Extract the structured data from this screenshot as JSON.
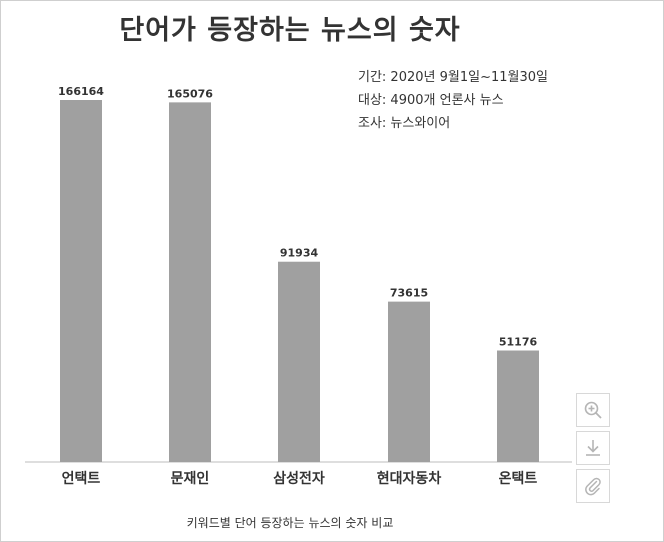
{
  "page": {
    "caption": "키워드별 단어 등장하는 뉴스의 숫자 비교"
  },
  "toolbar": {
    "zoom_icon": "zoom-in-icon",
    "download_icon": "download-icon",
    "attach_icon": "paperclip-icon"
  },
  "chart_data": {
    "type": "bar",
    "title": "단어가 등장하는 뉴스의 숫자",
    "notes": [
      "기간: 2020년 9월1일~11월30일",
      "대상: 4900개 언론사 뉴스",
      "조사: 뉴스와이어"
    ],
    "categories": [
      "언택트",
      "문재인",
      "삼성전자",
      "현대자동차",
      "온택트"
    ],
    "values": [
      166164,
      165076,
      91934,
      73615,
      51176
    ],
    "data_labels": [
      "166164",
      "165076",
      "91934",
      "73615",
      "51176"
    ],
    "ylim": [
      0,
      175000
    ],
    "bar_color": "#a0a0a0",
    "grid": false,
    "legend": "none"
  }
}
